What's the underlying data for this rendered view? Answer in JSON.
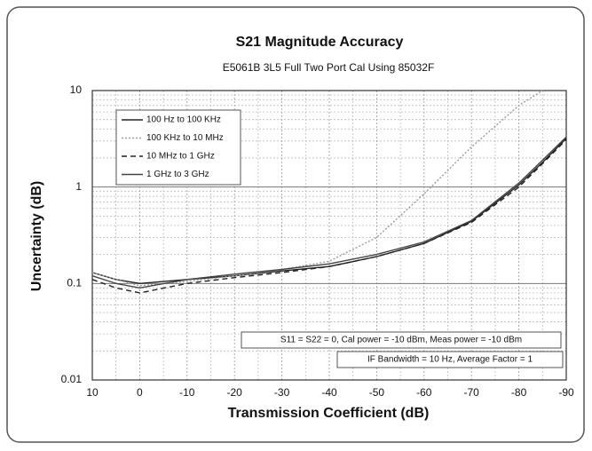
{
  "chart_data": {
    "type": "line",
    "title": "S21 Magnitude Accuracy",
    "subtitle": "E5061B 3L5 Full Two Port Cal Using 85032F",
    "x_label": "Transmission Coefficient (dB)",
    "y_label": "Uncertainty (dB)",
    "x": [
      10,
      5,
      0,
      -10,
      -20,
      -30,
      -40,
      -50,
      -60,
      -70,
      -80,
      -85,
      -90
    ],
    "xlim": [
      10,
      -90
    ],
    "xticks": [
      10,
      0,
      -10,
      -20,
      -30,
      -40,
      -50,
      -60,
      -70,
      -80,
      -90
    ],
    "ylim": [
      0.01,
      10
    ],
    "yticks": [
      0.01,
      0.1,
      1,
      10
    ],
    "log_y": true,
    "grid": true,
    "legend": "upper left",
    "series": [
      {
        "name": "100 Hz to 100 KHz",
        "color": "#222222",
        "style": "solid",
        "values": [
          0.13,
          0.11,
          0.1,
          0.11,
          0.12,
          0.135,
          0.15,
          0.19,
          0.26,
          0.44,
          1.05,
          1.8,
          3.2
        ]
      },
      {
        "name": "100 KHz to 10 MHz",
        "color": "#9a9a9a",
        "style": "dotted",
        "values": [
          0.13,
          0.11,
          0.095,
          0.105,
          0.12,
          0.14,
          0.17,
          0.3,
          0.85,
          2.6,
          7,
          10,
          null
        ]
      },
      {
        "name": "10 MHz to 1 GHz",
        "color": "#222222",
        "style": "dashed",
        "values": [
          0.11,
          0.09,
          0.08,
          0.1,
          0.115,
          0.13,
          0.15,
          0.19,
          0.26,
          0.43,
          1.0,
          1.75,
          3.1
        ]
      },
      {
        "name": "1 GHz to 3 GHz",
        "color": "#444444",
        "style": "solid",
        "values": [
          0.12,
          0.1,
          0.09,
          0.11,
          0.125,
          0.14,
          0.16,
          0.2,
          0.27,
          0.45,
          1.1,
          1.9,
          3.3
        ]
      }
    ],
    "annotations": [
      "S11 = S22 = 0, Cal power = -10 dBm, Meas power = -10 dBm",
      "IF Bandwidth = 10 Hz, Average Factor = 1"
    ]
  }
}
